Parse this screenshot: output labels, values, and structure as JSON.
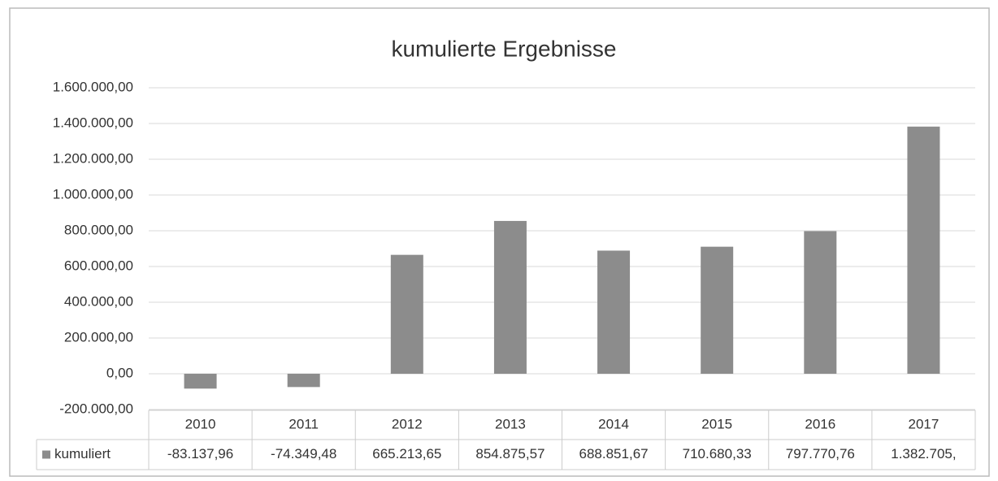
{
  "chart_data": {
    "type": "bar",
    "title": "kumulierte Ergebnisse",
    "categories": [
      "2010",
      "2011",
      "2012",
      "2013",
      "2014",
      "2015",
      "2016",
      "2017"
    ],
    "series": [
      {
        "name": "kumuliert",
        "color": "#8c8c8c",
        "values": [
          -83137.96,
          -74349.48,
          665213.65,
          854875.57,
          688851.67,
          710680.33,
          797770.76,
          1382705
        ],
        "value_labels": [
          "-83.137,96",
          "-74.349,48",
          "665.213,65",
          "854.875,57",
          "688.851,67",
          "710.680,33",
          "797.770,76",
          "1.382.705,"
        ]
      }
    ],
    "ylim": [
      -200000,
      1600000
    ],
    "yticks": [
      {
        "value": -200000,
        "label": "-200.000,00"
      },
      {
        "value": 0,
        "label": "0,00"
      },
      {
        "value": 200000,
        "label": "200.000,00"
      },
      {
        "value": 400000,
        "label": "400.000,00"
      },
      {
        "value": 600000,
        "label": "600.000,00"
      },
      {
        "value": 800000,
        "label": "800.000,00"
      },
      {
        "value": 1000000,
        "label": "1.000.000,00"
      },
      {
        "value": 1200000,
        "label": "1.200.000,00"
      },
      {
        "value": 1400000,
        "label": "1.400.000,00"
      },
      {
        "value": 1600000,
        "label": "1.600.000,00"
      }
    ],
    "grid": true
  }
}
